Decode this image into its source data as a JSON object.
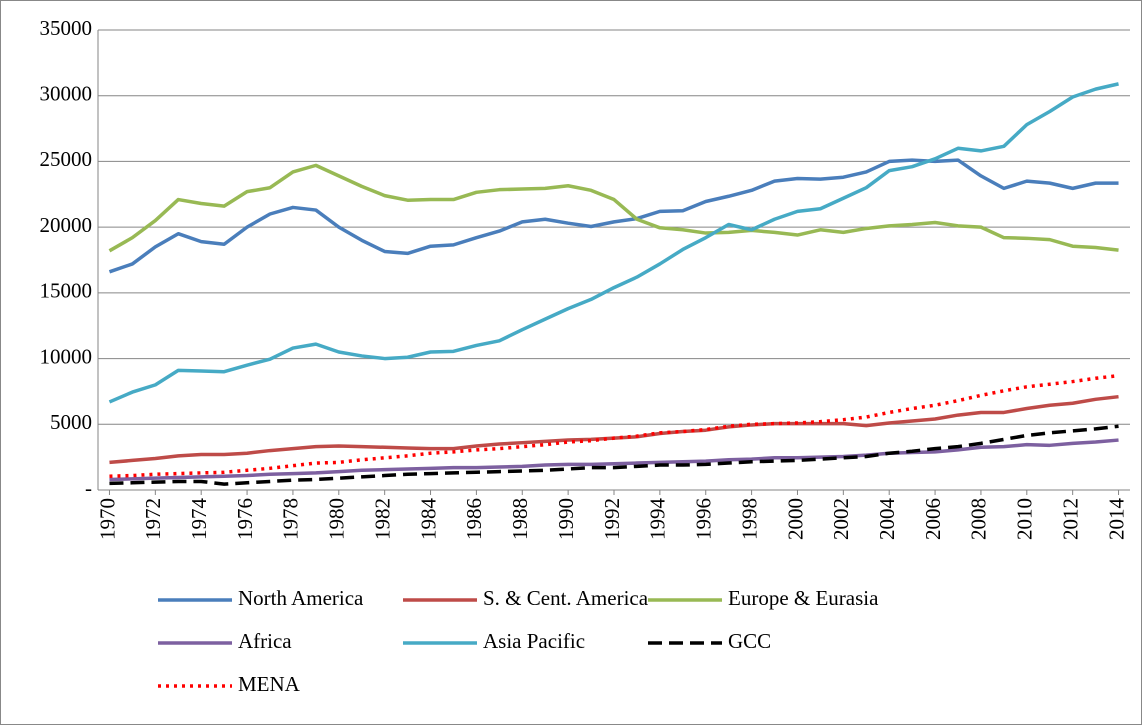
{
  "chart_data": {
    "type": "line",
    "x": [
      1970,
      1971,
      1972,
      1973,
      1974,
      1975,
      1976,
      1977,
      1978,
      1979,
      1980,
      1981,
      1982,
      1983,
      1984,
      1985,
      1986,
      1987,
      1988,
      1989,
      1990,
      1991,
      1992,
      1993,
      1994,
      1995,
      1996,
      1997,
      1998,
      1999,
      2000,
      2001,
      2002,
      2003,
      2004,
      2005,
      2006,
      2007,
      2008,
      2009,
      2010,
      2011,
      2012,
      2013,
      2014
    ],
    "xlim": [
      1969.5,
      2014.5
    ],
    "xticks": [
      1970,
      1972,
      1974,
      1976,
      1978,
      1980,
      1982,
      1984,
      1986,
      1988,
      1990,
      1992,
      1994,
      1996,
      1998,
      2000,
      2002,
      2004,
      2006,
      2008,
      2010,
      2012,
      2014
    ],
    "ylim": [
      0,
      35000
    ],
    "yticks": [
      {
        "value": 0,
        "label": "-"
      },
      5000,
      10000,
      15000,
      20000,
      25000,
      30000,
      35000
    ],
    "grid": true,
    "legend": "bottom",
    "series": [
      {
        "name": "North America",
        "color": "#4a7ebb",
        "dash": "solid",
        "values": [
          16600,
          17200,
          18500,
          19500,
          18900,
          18700,
          20000,
          21000,
          21500,
          21300,
          20000,
          19000,
          18150,
          18000,
          18550,
          18650,
          19200,
          19700,
          20400,
          20600,
          20300,
          20050,
          20400,
          20650,
          21200,
          21250,
          21950,
          22350,
          22800,
          23500,
          23700,
          23650,
          23800,
          24200,
          25000,
          25100,
          25000,
          25100,
          23900,
          22950,
          23500,
          23350,
          22950,
          23350,
          23350
        ]
      },
      {
        "name": "S. & Cent. America",
        "color": "#be4b48",
        "dash": "solid",
        "values": [
          2100,
          2250,
          2400,
          2600,
          2700,
          2700,
          2800,
          3000,
          3150,
          3300,
          3350,
          3300,
          3250,
          3200,
          3150,
          3150,
          3350,
          3500,
          3600,
          3700,
          3800,
          3850,
          3950,
          4050,
          4300,
          4450,
          4550,
          4800,
          4950,
          5050,
          5050,
          5050,
          5050,
          4900,
          5100,
          5250,
          5400,
          5700,
          5900,
          5900,
          6200,
          6450,
          6600,
          6900,
          7100
        ]
      },
      {
        "name": "Europe & Eurasia",
        "color": "#98b954",
        "dash": "solid",
        "values": [
          18200,
          19200,
          20500,
          22100,
          21800,
          21600,
          22700,
          23000,
          24200,
          24700,
          23900,
          23100,
          22400,
          22050,
          22100,
          22100,
          22650,
          22850,
          22900,
          22950,
          23150,
          22800,
          22100,
          20600,
          19950,
          19800,
          19550,
          19600,
          19750,
          19600,
          19400,
          19800,
          19600,
          19900,
          20100,
          20200,
          20350,
          20100,
          20000,
          19200,
          19150,
          19050,
          18550,
          18450,
          18250
        ]
      },
      {
        "name": "Africa",
        "color": "#7d60a0",
        "dash": "solid",
        "values": [
          800,
          850,
          900,
          950,
          1000,
          1050,
          1100,
          1200,
          1250,
          1300,
          1400,
          1500,
          1550,
          1600,
          1650,
          1700,
          1700,
          1750,
          1800,
          1900,
          1950,
          1950,
          2000,
          2050,
          2100,
          2150,
          2200,
          2300,
          2350,
          2450,
          2450,
          2500,
          2550,
          2650,
          2800,
          2850,
          2900,
          3050,
          3250,
          3300,
          3450,
          3400,
          3550,
          3650,
          3800
        ]
      },
      {
        "name": "Asia Pacific",
        "color": "#46aac5",
        "dash": "solid",
        "values": [
          6700,
          7450,
          8000,
          9100,
          9050,
          9000,
          9500,
          9950,
          10800,
          11100,
          10500,
          10200,
          10000,
          10100,
          10500,
          10550,
          11000,
          11350,
          12200,
          13000,
          13800,
          14500,
          15400,
          16200,
          17200,
          18300,
          19200,
          20200,
          19800,
          20600,
          21200,
          21400,
          22200,
          23000,
          24300,
          24600,
          25200,
          26000,
          25800,
          26150,
          27800,
          28800,
          29900,
          30500,
          30900
        ]
      },
      {
        "name": "GCC",
        "color": "#000000",
        "dash": "dashed",
        "values": [
          500,
          550,
          600,
          650,
          650,
          450,
          550,
          650,
          750,
          800,
          900,
          1000,
          1100,
          1200,
          1250,
          1300,
          1350,
          1400,
          1450,
          1500,
          1600,
          1700,
          1700,
          1800,
          1900,
          1900,
          1950,
          2050,
          2150,
          2200,
          2250,
          2350,
          2450,
          2550,
          2800,
          2950,
          3150,
          3300,
          3550,
          3850,
          4150,
          4350,
          4500,
          4650,
          4850
        ]
      },
      {
        "name": "MENA",
        "color": "#ff0000",
        "dash": "dotted",
        "values": [
          1050,
          1100,
          1200,
          1250,
          1300,
          1350,
          1500,
          1650,
          1850,
          2050,
          2100,
          2300,
          2450,
          2600,
          2800,
          2900,
          3050,
          3150,
          3300,
          3450,
          3650,
          3750,
          3950,
          4100,
          4350,
          4450,
          4600,
          4850,
          5000,
          5050,
          5100,
          5200,
          5350,
          5550,
          5900,
          6200,
          6450,
          6800,
          7200,
          7550,
          7850,
          8050,
          8250,
          8500,
          8700
        ]
      }
    ]
  }
}
